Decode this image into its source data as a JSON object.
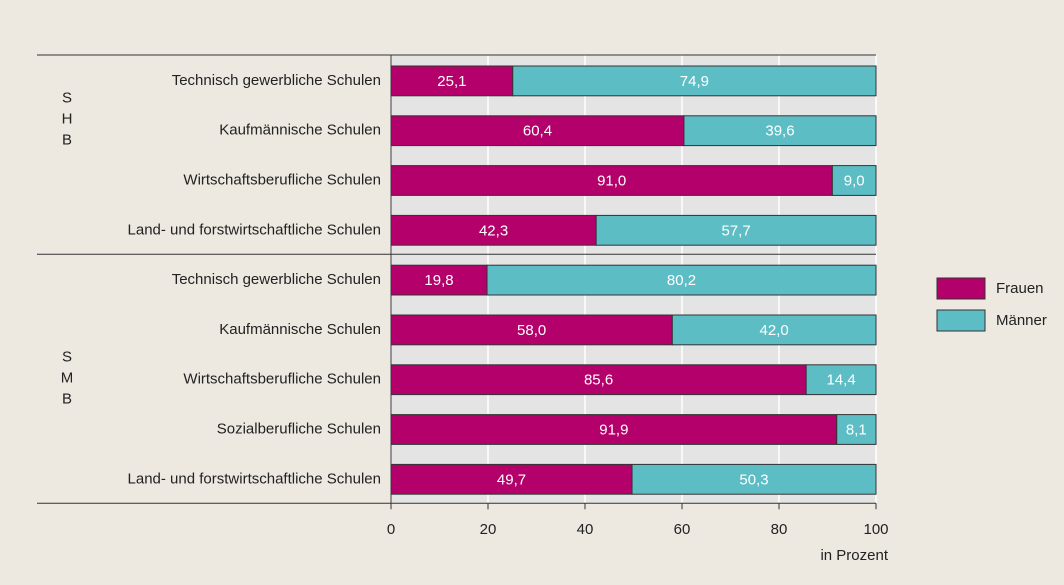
{
  "chart_data": {
    "type": "bar",
    "orientation": "horizontal",
    "stacked": true,
    "groups": [
      {
        "label": [
          "S",
          "H",
          "B"
        ],
        "categories": [
          "Technisch gewerbliche Schulen",
          "Kaufmännische Schulen",
          "Wirtschaftsberufliche Schulen",
          "Land- und forstwirtschaftliche Schulen"
        ]
      },
      {
        "label": [
          "S",
          "M",
          "B"
        ],
        "categories": [
          "Technisch gewerbliche Schulen",
          "Kaufmännische Schulen",
          "Wirtschaftsberufliche Schulen",
          "Sozialberufliche Schulen",
          "Land- und forstwirtschaftliche Schulen"
        ]
      }
    ],
    "series": [
      {
        "name": "Frauen",
        "color": "#b4006a",
        "values": [
          25.1,
          60.4,
          91.0,
          42.3,
          19.8,
          58.0,
          85.6,
          91.9,
          49.7
        ],
        "value_labels": [
          "25,1",
          "60,4",
          "91,0",
          "42,3",
          "19,8",
          "58,0",
          "85,6",
          "91,9",
          "49,7"
        ]
      },
      {
        "name": "Männer",
        "color": "#5cbdc5",
        "values": [
          74.9,
          39.6,
          9.0,
          57.7,
          80.2,
          42.0,
          14.4,
          8.1,
          50.3
        ],
        "value_labels": [
          "74,9",
          "39,6",
          "9,0",
          "57,7",
          "80,2",
          "42,0",
          "14,4",
          "8,1",
          "50,3"
        ]
      }
    ],
    "xlim": [
      0,
      100
    ],
    "xticks": [
      0,
      20,
      40,
      60,
      80,
      100
    ],
    "xlabel": "in Prozent",
    "grid": true,
    "legend": "right"
  }
}
